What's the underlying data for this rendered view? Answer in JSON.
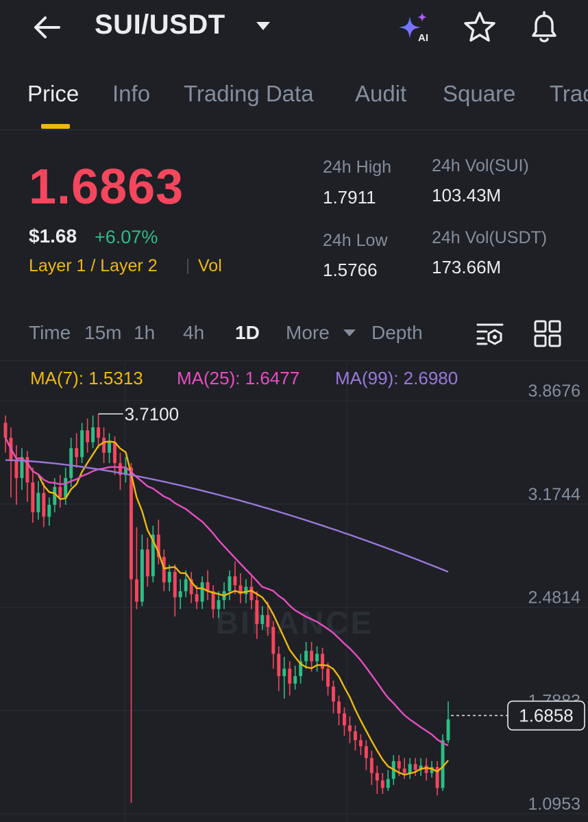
{
  "header": {
    "title": "SUI/USDT",
    "icons": [
      "back-arrow-icon",
      "caret-down-icon",
      "ai-sparkle-icon",
      "star-icon",
      "bell-icon"
    ],
    "ai_label": "AI"
  },
  "tabs": [
    "Price",
    "Info",
    "Trading Data",
    "Audit",
    "Square",
    "Trad"
  ],
  "active_tab": "Price",
  "price": {
    "last": "1.6863",
    "usd": "$1.68",
    "change": "+6.07%",
    "tag": "Layer 1 / Layer 2",
    "tag2": "Vol"
  },
  "stats": {
    "high_label": "24h High",
    "high": "1.7911",
    "low_label": "24h Low",
    "low": "1.5766",
    "vol_sui_label": "24h Vol(SUI)",
    "vol_sui": "103.43M",
    "vol_usdt_label": "24h Vol(USDT)",
    "vol_usdt": "173.66M"
  },
  "timeframes": [
    "Time",
    "15m",
    "1h",
    "4h",
    "1D",
    "More",
    "Depth"
  ],
  "active_timeframe": "1D",
  "ma": {
    "ma7": "MA(7): 1.5313",
    "ma25": "MA(25): 1.6477",
    "ma99": "MA(99): 2.6980"
  },
  "colors": {
    "bg": "#1e2026",
    "up": "#2ebd85",
    "down": "#f6465d",
    "accent": "#f0b90b",
    "ma7": "#f0b90b",
    "ma25": "#e84ec0",
    "ma99": "#9b77d9"
  },
  "chart_data": {
    "type": "candlestick",
    "y_ticks": [
      "3.8676",
      "3.1744",
      "2.4814",
      "1.7883",
      "1.0953"
    ],
    "ylim": [
      1.0953,
      3.8676
    ],
    "high_marker": "3.7100",
    "current_price_label": "1.6858",
    "watermark": "BINANCE",
    "candles": [
      [
        3.65,
        3.55,
        3.7,
        3.45
      ],
      [
        3.55,
        3.4,
        3.62,
        3.15
      ],
      [
        3.4,
        3.28,
        3.5,
        3.1
      ],
      [
        3.28,
        3.42,
        3.48,
        3.2
      ],
      [
        3.42,
        3.25,
        3.46,
        3.12
      ],
      [
        3.25,
        3.05,
        3.35,
        2.98
      ],
      [
        3.05,
        3.18,
        3.26,
        3.0
      ],
      [
        3.18,
        3.02,
        3.25,
        2.95
      ],
      [
        3.02,
        3.1,
        3.15,
        2.96
      ],
      [
        3.1,
        3.22,
        3.28,
        3.05
      ],
      [
        3.22,
        3.15,
        3.3,
        3.08
      ],
      [
        3.15,
        3.28,
        3.35,
        3.1
      ],
      [
        3.28,
        3.48,
        3.55,
        3.22
      ],
      [
        3.48,
        3.42,
        3.58,
        3.35
      ],
      [
        3.42,
        3.6,
        3.65,
        3.38
      ],
      [
        3.6,
        3.52,
        3.68,
        3.45
      ],
      [
        3.52,
        3.62,
        3.7,
        3.48
      ],
      [
        3.62,
        3.55,
        3.71,
        3.48
      ],
      [
        3.55,
        3.45,
        3.62,
        3.38
      ],
      [
        3.45,
        3.52,
        3.58,
        3.38
      ],
      [
        3.52,
        3.38,
        3.56,
        3.3
      ],
      [
        3.38,
        3.3,
        3.45,
        3.2
      ],
      [
        3.3,
        3.35,
        3.42,
        3.25
      ],
      [
        3.35,
        2.6,
        3.38,
        1.1
      ],
      [
        2.6,
        2.45,
        2.95,
        2.4
      ],
      [
        2.45,
        2.8,
        2.9,
        2.42
      ],
      [
        2.8,
        2.62,
        2.88,
        2.55
      ],
      [
        2.62,
        2.9,
        2.96,
        2.58
      ],
      [
        2.9,
        2.75,
        3.0,
        2.7
      ],
      [
        2.75,
        2.58,
        2.8,
        2.52
      ],
      [
        2.58,
        2.65,
        2.7,
        2.52
      ],
      [
        2.65,
        2.48,
        2.7,
        2.35
      ],
      [
        2.48,
        2.52,
        2.6,
        2.4
      ],
      [
        2.52,
        2.6,
        2.66,
        2.48
      ],
      [
        2.6,
        2.5,
        2.65,
        2.44
      ],
      [
        2.5,
        2.45,
        2.56,
        2.4
      ],
      [
        2.45,
        2.58,
        2.62,
        2.4
      ],
      [
        2.58,
        2.52,
        2.66,
        2.46
      ],
      [
        2.52,
        2.4,
        2.56,
        2.34
      ],
      [
        2.4,
        2.46,
        2.52,
        2.34
      ],
      [
        2.46,
        2.52,
        2.58,
        2.4
      ],
      [
        2.52,
        2.62,
        2.66,
        2.46
      ],
      [
        2.62,
        2.56,
        2.72,
        2.5
      ],
      [
        2.56,
        2.5,
        2.64,
        2.44
      ],
      [
        2.5,
        2.55,
        2.6,
        2.44
      ],
      [
        2.55,
        2.46,
        2.62,
        2.4
      ],
      [
        2.46,
        2.3,
        2.52,
        2.2
      ],
      [
        2.3,
        2.36,
        2.42,
        2.26
      ],
      [
        2.36,
        2.28,
        2.45,
        2.22
      ],
      [
        2.28,
        2.1,
        2.32,
        2.0
      ],
      [
        2.1,
        1.95,
        2.15,
        1.85
      ],
      [
        1.95,
        2.0,
        2.08,
        1.8
      ],
      [
        2.0,
        1.9,
        2.05,
        1.82
      ],
      [
        1.9,
        1.95,
        2.02,
        1.86
      ],
      [
        1.95,
        2.05,
        2.1,
        1.9
      ],
      [
        2.05,
        2.12,
        2.18,
        2.0
      ],
      [
        2.12,
        2.05,
        2.18,
        1.98
      ],
      [
        2.05,
        2.1,
        2.15,
        1.98
      ],
      [
        2.1,
        2.0,
        2.14,
        1.92
      ],
      [
        2.0,
        1.88,
        2.04,
        1.82
      ],
      [
        1.88,
        1.78,
        1.92,
        1.7
      ],
      [
        1.78,
        1.7,
        1.82,
        1.62
      ],
      [
        1.7,
        1.62,
        1.74,
        1.55
      ],
      [
        1.62,
        1.58,
        1.68,
        1.5
      ],
      [
        1.58,
        1.52,
        1.62,
        1.45
      ],
      [
        1.52,
        1.48,
        1.56,
        1.42
      ],
      [
        1.48,
        1.4,
        1.52,
        1.32
      ],
      [
        1.4,
        1.3,
        1.45,
        1.22
      ],
      [
        1.3,
        1.25,
        1.35,
        1.16
      ],
      [
        1.25,
        1.2,
        1.3,
        1.16
      ],
      [
        1.2,
        1.26,
        1.32,
        1.18
      ],
      [
        1.26,
        1.38,
        1.42,
        1.22
      ],
      [
        1.38,
        1.33,
        1.42,
        1.28
      ],
      [
        1.33,
        1.3,
        1.4,
        1.26
      ],
      [
        1.3,
        1.36,
        1.4,
        1.26
      ],
      [
        1.36,
        1.32,
        1.4,
        1.28
      ],
      [
        1.32,
        1.35,
        1.4,
        1.28
      ],
      [
        1.35,
        1.3,
        1.4,
        1.25
      ],
      [
        1.3,
        1.34,
        1.38,
        1.27
      ],
      [
        1.34,
        1.2,
        1.38,
        1.15
      ],
      [
        1.2,
        1.52,
        1.56,
        1.18
      ],
      [
        1.52,
        1.66,
        1.78,
        1.5
      ]
    ]
  }
}
